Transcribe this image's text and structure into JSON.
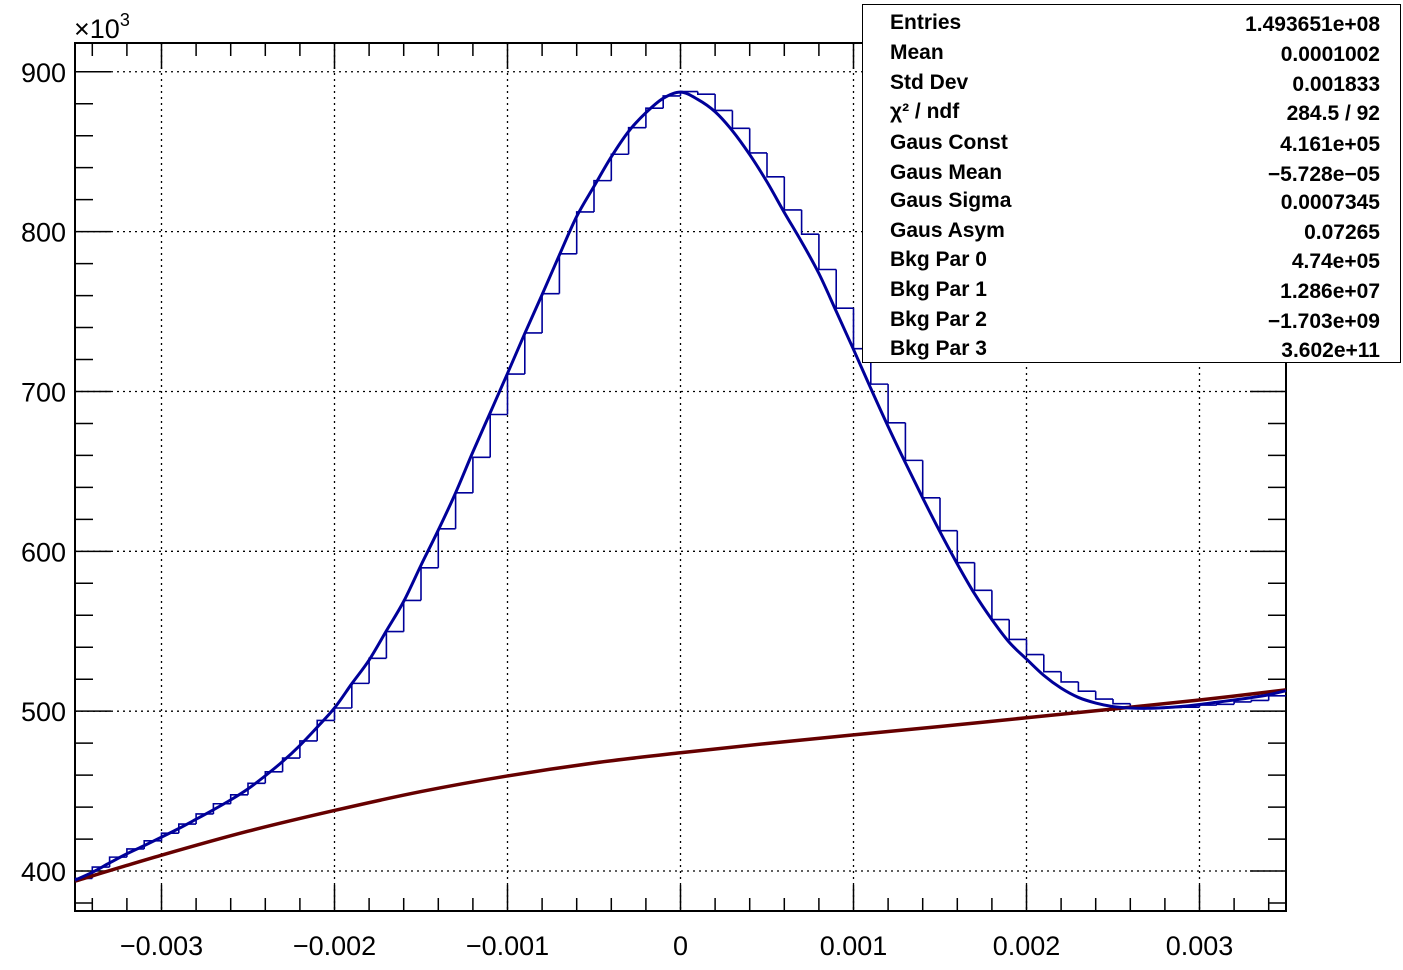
{
  "chart_data": {
    "type": "line",
    "x_axis": {
      "range": [
        -0.0035,
        0.0035
      ],
      "ticks": [
        -0.003,
        -0.002,
        -0.001,
        0,
        0.001,
        0.002,
        0.003
      ],
      "tick_labels": [
        "−0.003",
        "−0.002",
        "−0.001",
        "0",
        "0.001",
        "0.002",
        "0.003"
      ]
    },
    "y_axis": {
      "range": [
        375,
        918
      ],
      "ticks": [
        400,
        500,
        600,
        700,
        800,
        900
      ],
      "tick_labels": [
        "400",
        "500",
        "600",
        "700",
        "800",
        "900"
      ],
      "exponent_prefix": "×10",
      "exponent": "3"
    },
    "grid": true,
    "histogram": {
      "name": "",
      "color": "#000099",
      "bin_width": 0.0001,
      "x_min": -0.0035,
      "values": [
        395.4,
        402.5,
        408.7,
        413.8,
        418.9,
        423.7,
        429.4,
        435.7,
        442.1,
        447.7,
        454.9,
        462.1,
        470.7,
        481.4,
        494.2,
        502.0,
        517.4,
        533.1,
        549.8,
        569.3,
        589.7,
        614.1,
        636.6,
        658.8,
        685.6,
        710.9,
        736.6,
        761.2,
        786.1,
        812.3,
        831.9,
        848.4,
        865.0,
        877.2,
        884.9,
        887.6,
        886.0,
        875.8,
        864.6,
        849.2,
        834.3,
        813.6,
        798.4,
        776.3,
        752.1,
        726.8,
        704.6,
        680.4,
        656.9,
        633.5,
        612.9,
        592.9,
        575.6,
        557.3,
        544.9,
        535.4,
        524.7,
        518.3,
        512.5,
        507.6,
        504.7,
        502.4,
        501.8,
        502.3,
        502.5,
        503.8,
        504.3,
        505.8,
        506.7,
        509.6
      ]
    },
    "fit_total": {
      "name": "",
      "color": "#000099",
      "x": [
        -0.0035,
        -0.0034,
        -0.0033,
        -0.0032,
        -0.0031,
        -0.003,
        -0.0029,
        -0.0028,
        -0.0027,
        -0.0026,
        -0.0025,
        -0.0024,
        -0.0023,
        -0.0022,
        -0.0021,
        -0.002,
        -0.0019,
        -0.0018,
        -0.0017,
        -0.0016,
        -0.0015,
        -0.0014,
        -0.0013,
        -0.0012,
        -0.0011,
        -0.001,
        -0.0009,
        -0.0008,
        -0.0007,
        -0.0006,
        -0.0005,
        -0.0004,
        -0.0003,
        -0.0002,
        -0.0001,
        0.0,
        0.0001,
        0.0002,
        0.0003,
        0.0004,
        0.0005,
        0.0006,
        0.0007,
        0.0008,
        0.0009,
        0.001,
        0.0011,
        0.0012,
        0.0013,
        0.0014,
        0.0015,
        0.0016,
        0.0017,
        0.0018,
        0.0019,
        0.002,
        0.0021,
        0.0022,
        0.0023,
        0.0024,
        0.0025,
        0.0026,
        0.0027,
        0.0028,
        0.0029,
        0.003,
        0.0031,
        0.0032,
        0.0033,
        0.0034,
        0.0035
      ],
      "y": [
        394.3,
        399.2,
        405.1,
        410.8,
        415.9,
        421.2,
        426.6,
        432.4,
        438.3,
        444.5,
        451.4,
        459.6,
        468.5,
        478.6,
        490.0,
        502.0,
        517.2,
        532.0,
        550.3,
        568.7,
        591.3,
        613.3,
        636.6,
        662.2,
        686.7,
        711.3,
        736.3,
        760.6,
        785.4,
        809.5,
        828.3,
        846.8,
        862.7,
        874.4,
        883.4,
        887.3,
        882.7,
        875.0,
        863.1,
        848.2,
        831.1,
        812.0,
        793.6,
        773.8,
        750.2,
        726.3,
        701.9,
        678.1,
        655.4,
        633.4,
        612.2,
        592.1,
        573.4,
        557.3,
        543.1,
        532.6,
        522.4,
        514.4,
        508.6,
        505.1,
        502.9,
        502.0,
        501.8,
        502.2,
        503.0,
        504.2,
        505.6,
        507.0,
        508.5,
        510.3,
        512.8
      ]
    },
    "fit_background": {
      "name": "",
      "color": "#660000",
      "x": [
        -0.0035,
        -0.003,
        -0.0025,
        -0.002,
        -0.0015,
        -0.001,
        -0.0005,
        0.0,
        0.0005,
        0.001,
        0.0015,
        0.002,
        0.0025,
        0.003,
        0.0035
      ],
      "y": [
        393.7,
        409.9,
        424.9,
        437.9,
        449.7,
        459.5,
        467.6,
        474.0,
        479.8,
        485.2,
        490.4,
        495.9,
        501.4,
        507.0,
        513.3
      ]
    },
    "stats": [
      {
        "name": "Entries",
        "value": "1.493651e+08"
      },
      {
        "name": "Mean",
        "value": "0.0001002"
      },
      {
        "name": "Std Dev",
        "value": "0.001833"
      },
      {
        "name": "χ² / ndf",
        "value": "284.5 / 92"
      },
      {
        "name": "Gaus Const",
        "value": "4.161e+05"
      },
      {
        "name": "Gaus Mean",
        "value": "−5.728e−05"
      },
      {
        "name": "Gaus Sigma",
        "value": "0.0007345"
      },
      {
        "name": "Gaus Asym",
        "value": "0.07265"
      },
      {
        "name": "Bkg Par 0",
        "value": "4.74e+05"
      },
      {
        "name": "Bkg Par 1",
        "value": "1.286e+07"
      },
      {
        "name": "Bkg Par 2",
        "value": "−1.703e+09"
      },
      {
        "name": "Bkg Par 3",
        "value": "3.602e+11"
      }
    ]
  }
}
